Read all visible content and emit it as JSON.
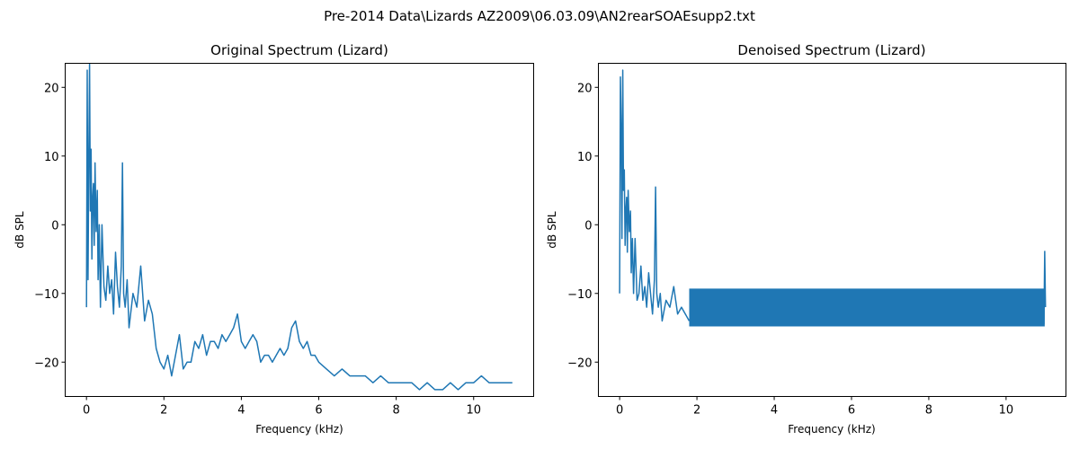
{
  "suptitle": "Pre-2014 Data\\Lizards AZ2009\\06.03.09\\AN2rearSOAEsupp2.txt",
  "line_color": "#1f77b4",
  "chart_data": [
    {
      "type": "line",
      "title": "Original Spectrum (Lizard)",
      "xlabel": "Frequency (kHz)",
      "ylabel": "dB SPL",
      "xlim": [
        -0.55,
        11.55
      ],
      "ylim": [
        -25,
        23.5
      ],
      "xticks": [
        0,
        2,
        4,
        6,
        8,
        10
      ],
      "yticks": [
        -20,
        -10,
        0,
        10,
        20
      ],
      "grid": false,
      "series": [
        {
          "x": [
            0.0,
            0.02,
            0.04,
            0.06,
            0.08,
            0.1,
            0.12,
            0.14,
            0.16,
            0.18,
            0.2,
            0.22,
            0.25,
            0.28,
            0.3,
            0.33,
            0.36,
            0.4,
            0.45,
            0.5,
            0.55,
            0.6,
            0.65,
            0.7,
            0.75,
            0.8,
            0.85,
            0.9,
            0.93,
            0.96,
            1.0,
            1.05,
            1.1,
            1.2,
            1.3,
            1.4,
            1.5,
            1.6,
            1.7,
            1.8,
            1.9,
            2.0,
            2.1,
            2.2,
            2.3,
            2.4,
            2.5,
            2.6,
            2.7,
            2.8,
            2.9,
            3.0,
            3.1,
            3.2,
            3.3,
            3.4,
            3.5,
            3.6,
            3.7,
            3.8,
            3.9,
            4.0,
            4.1,
            4.2,
            4.3,
            4.4,
            4.5,
            4.6,
            4.7,
            4.8,
            4.9,
            5.0,
            5.1,
            5.2,
            5.3,
            5.4,
            5.5,
            5.6,
            5.7,
            5.8,
            5.9,
            6.0,
            6.2,
            6.4,
            6.6,
            6.8,
            7.0,
            7.2,
            7.4,
            7.6,
            7.8,
            8.0,
            8.2,
            8.4,
            8.6,
            8.8,
            9.0,
            9.2,
            9.4,
            9.6,
            9.8,
            10.0,
            10.2,
            10.4,
            10.6,
            10.8,
            11.0
          ],
          "values": [
            -12,
            22.5,
            -8,
            10,
            23.5,
            2,
            11,
            -5,
            4,
            6,
            -3,
            9,
            -1,
            5,
            -8,
            0,
            -12,
            0,
            -9,
            -11,
            -6,
            -10,
            -8,
            -13,
            -4,
            -9,
            -12,
            -6,
            9,
            -10,
            -12,
            -8,
            -15,
            -10,
            -12,
            -6,
            -14,
            -11,
            -13,
            -18,
            -20,
            -21,
            -19,
            -22,
            -19,
            -16,
            -21,
            -20,
            -20,
            -17,
            -18,
            -16,
            -19,
            -17,
            -17,
            -18,
            -16,
            -17,
            -16,
            -15,
            -13,
            -17,
            -18,
            -17,
            -16,
            -17,
            -20,
            -19,
            -19,
            -20,
            -19,
            -18,
            -19,
            -18,
            -15,
            -14,
            -17,
            -18,
            -17,
            -19,
            -19,
            -20,
            -21,
            -22,
            -21,
            -22,
            -22,
            -22,
            -23,
            -22,
            -23,
            -23,
            -23,
            -23,
            -24,
            -23,
            -24,
            -24,
            -23,
            -24,
            -23,
            -23,
            -22,
            -23,
            -23,
            -23,
            -23
          ]
        }
      ]
    },
    {
      "type": "line",
      "title": "Denoised Spectrum (Lizard)",
      "xlabel": "Frequency (kHz)",
      "ylabel": "dB SPL",
      "xlim": [
        -0.55,
        11.55
      ],
      "ylim": [
        -25,
        23.5
      ],
      "xticks": [
        0,
        2,
        4,
        6,
        8,
        10
      ],
      "yticks": [
        -20,
        -10,
        0,
        10,
        20
      ],
      "grid": false,
      "series": [
        {
          "x": [
            0.0,
            0.02,
            0.04,
            0.06,
            0.08,
            0.1,
            0.12,
            0.14,
            0.16,
            0.18,
            0.2,
            0.22,
            0.25,
            0.28,
            0.3,
            0.33,
            0.36,
            0.4,
            0.45,
            0.5,
            0.55,
            0.6,
            0.65,
            0.7,
            0.75,
            0.8,
            0.85,
            0.9,
            0.93,
            0.96,
            1.0,
            1.05,
            1.1,
            1.2,
            1.3,
            1.4,
            1.5,
            1.6,
            1.7,
            1.8
          ],
          "values": [
            -10,
            21.5,
            14,
            -2,
            22.5,
            5,
            8,
            -3,
            2,
            4,
            -4,
            5,
            -1,
            2,
            -7,
            -2,
            -10,
            -2,
            -11,
            -10,
            -6,
            -11,
            -9,
            -12,
            -7,
            -10,
            -13,
            -8,
            5.5,
            -10,
            -12,
            -10,
            -14,
            -11,
            -12,
            -9,
            -13,
            -12,
            -13,
            -14
          ]
        },
        {
          "type": "band",
          "x": [
            1.8,
            11.0
          ],
          "upper": [
            -9.3,
            -9.3
          ],
          "lower": [
            -14.8,
            -14.8
          ]
        }
      ]
    }
  ]
}
